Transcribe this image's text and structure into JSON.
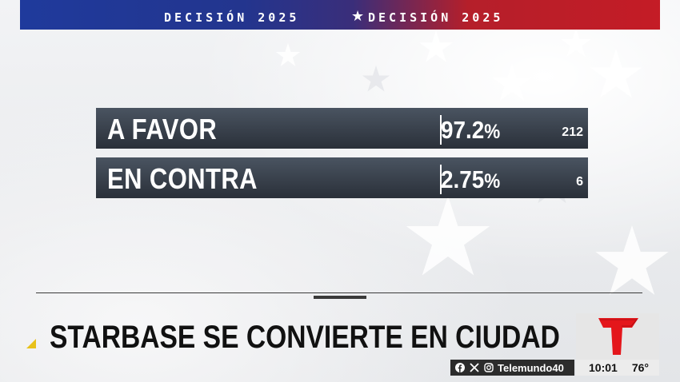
{
  "banner": {
    "left_text": "DECISIÓN 2025",
    "star": "★",
    "right_text": "DECISIÓN 2025"
  },
  "results": [
    {
      "label": "A FAVOR",
      "percent": "97.2",
      "percent_sign": "%",
      "count": "212"
    },
    {
      "label": "EN CONTRA",
      "percent": "2.75",
      "percent_sign": "%",
      "count": "6"
    }
  ],
  "headline": "STARBASE SE CONVIERTE EN CIUDAD",
  "footer": {
    "social_icons": [
      "facebook-icon",
      "x-icon",
      "instagram-icon"
    ],
    "handle": "Telemundo40",
    "time": "10:01",
    "temperature": "76°"
  },
  "colors": {
    "banner_blue": "#1f3a9c",
    "banner_red": "#c41c26",
    "logo_red": "#e4161b",
    "accent_yellow": "#e8c11a"
  }
}
